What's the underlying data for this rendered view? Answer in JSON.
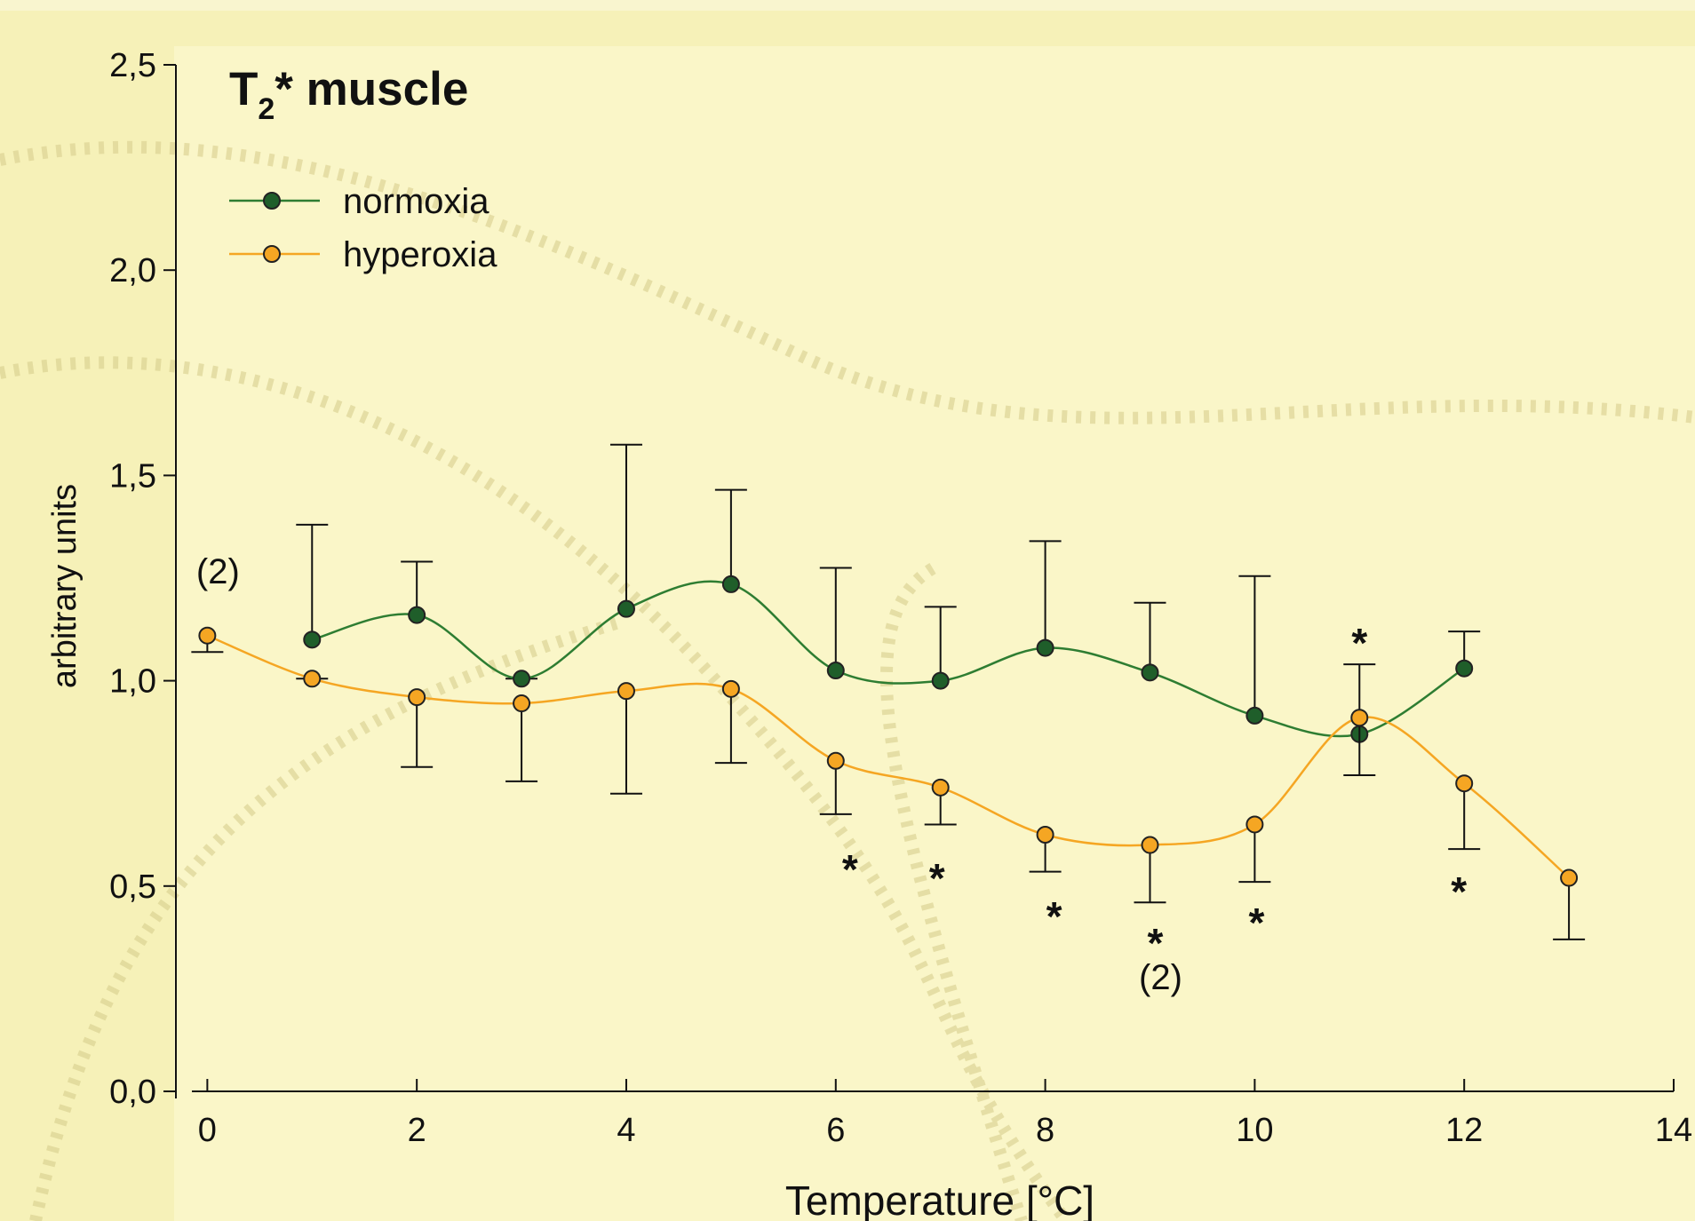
{
  "chart_data": {
    "type": "line",
    "title": "T₂* muscle",
    "x_label": "Temperature [°C]",
    "y_label": "arbitrary units",
    "xlim": [
      -0.3,
      14
    ],
    "ylim": [
      0,
      2.5
    ],
    "xticks": [
      0,
      2,
      4,
      6,
      8,
      10,
      12,
      14
    ],
    "yticks": [
      {
        "value": 0,
        "label": "0,0"
      },
      {
        "value": 0.5,
        "label": "0,5"
      },
      {
        "value": 1,
        "label": "1,0"
      },
      {
        "value": 1.5,
        "label": "1,5"
      },
      {
        "value": 2,
        "label": "2,0"
      },
      {
        "value": 2.5,
        "label": "2,5"
      }
    ],
    "legend": "upper left",
    "series": [
      {
        "name": "normoxia",
        "color": "#1f5e2a",
        "line_color": "#2e7d32",
        "error_direction": "up",
        "x": [
          1,
          2,
          3,
          4,
          5,
          6,
          7,
          8,
          9,
          10,
          11,
          12
        ],
        "values": [
          1.1,
          1.16,
          1.005,
          1.175,
          1.235,
          1.025,
          1.0,
          1.08,
          1.02,
          0.915,
          0.87,
          1.03
        ],
        "errors": [
          0.28,
          0.13,
          0,
          0.4,
          0.23,
          0.25,
          0.18,
          0.26,
          0.17,
          0.34,
          0.17,
          0.09
        ]
      },
      {
        "name": "hyperoxia",
        "color": "#f5a623",
        "line_color": "#f5a623",
        "error_direction": "down",
        "x": [
          0,
          1,
          2,
          3,
          4,
          5,
          6,
          7,
          8,
          9,
          10,
          11,
          12,
          13
        ],
        "values": [
          1.11,
          1.005,
          0.96,
          0.945,
          0.975,
          0.98,
          0.805,
          0.74,
          0.625,
          0.6,
          0.65,
          0.91,
          0.75,
          0.52
        ],
        "errors": [
          0.04,
          0,
          0.17,
          0.19,
          0.25,
          0.18,
          0.13,
          0.09,
          0.09,
          0.14,
          0.14,
          0.14,
          0.16,
          0.15
        ]
      }
    ],
    "annotations": [
      {
        "text": "(2)",
        "x": 0
      },
      {
        "text": "*",
        "x": 6
      },
      {
        "text": "*",
        "x": 7
      },
      {
        "text": "*",
        "x": 8
      },
      {
        "text": "*",
        "x": 9
      },
      {
        "text": "(2)",
        "x": 9
      },
      {
        "text": "*",
        "x": 10
      },
      {
        "text": "*",
        "x": 11
      },
      {
        "text": "*",
        "x": 12
      }
    ]
  }
}
